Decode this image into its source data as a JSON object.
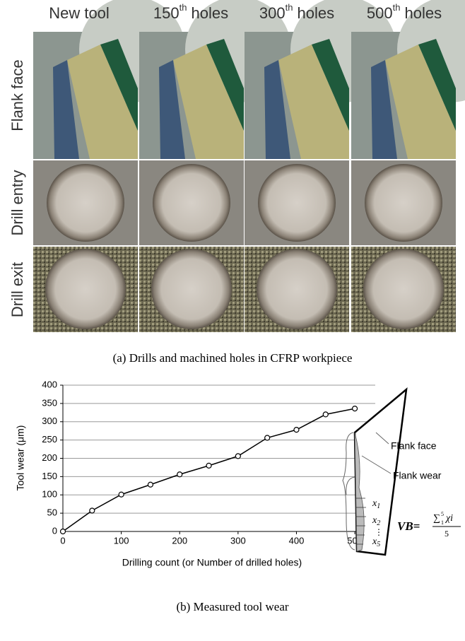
{
  "photo_grid": {
    "columns": [
      {
        "text": "New tool"
      },
      {
        "count": "150",
        "sup": "th",
        "text": " holes"
      },
      {
        "count": "300",
        "sup": "th",
        "text": " holes"
      },
      {
        "count": "500",
        "sup": "th",
        "text": " holes"
      }
    ],
    "rows": [
      "Flank face",
      "Drill entry",
      "Drill exit"
    ],
    "caption": "(a) Drills and machined holes in CFRP workpiece"
  },
  "chart_data": {
    "type": "line",
    "x": [
      0,
      50,
      100,
      150,
      200,
      250,
      300,
      350,
      400,
      450,
      500
    ],
    "values": [
      0,
      57,
      101,
      128,
      156,
      180,
      206,
      256,
      278,
      320,
      336
    ],
    "color": "#000000",
    "xlim": [
      0,
      535
    ],
    "ylim": [
      0,
      400
    ],
    "xticks": [
      0,
      100,
      200,
      300,
      400,
      500
    ],
    "yticks": [
      0,
      50,
      100,
      150,
      200,
      250,
      300,
      350,
      400
    ],
    "grid": true,
    "x_label": "Drilling count (or Number of drilled holes)",
    "y_label": "Tool wear (μm)",
    "caption": "(b) Measured tool wear"
  },
  "diagram": {
    "flank_face": "Flank face",
    "flank_wear": "Flank wear",
    "measures": [
      {
        "base": "x",
        "sub": "1"
      },
      {
        "base": "x",
        "sub": "2"
      },
      {
        "base": "x",
        "sub": "5"
      }
    ],
    "formula": {
      "lhs": "VB=",
      "sum": "∑",
      "sup": "5",
      "sub": "1",
      "term": "χi",
      "den": "5"
    }
  }
}
